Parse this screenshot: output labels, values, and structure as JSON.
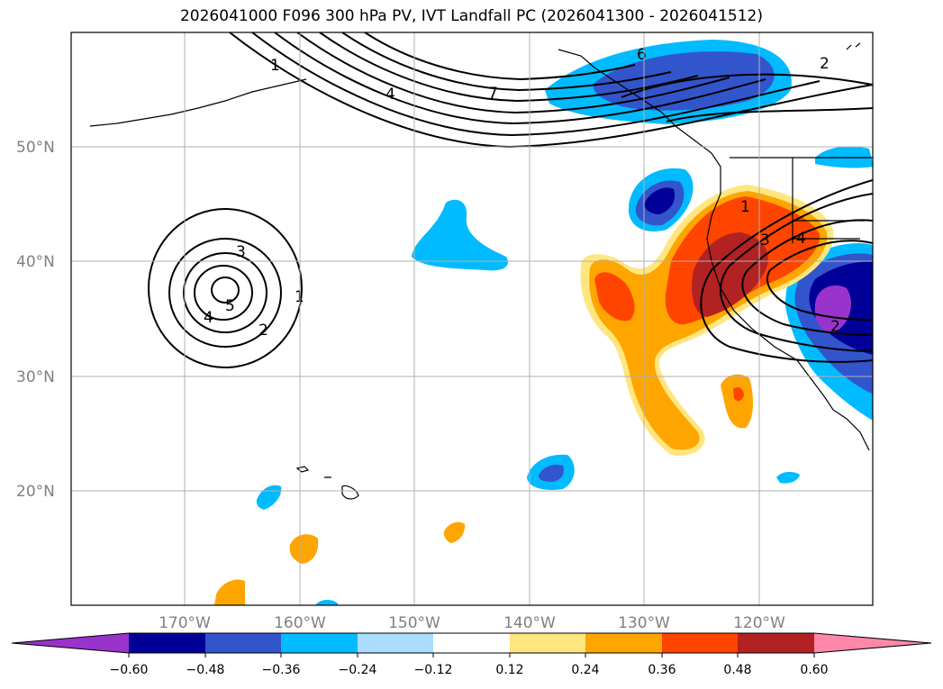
{
  "title": "2026041000 F096 300 hPa PV, IVT Landfall PC (2026041300 - 2026041512)",
  "map": {
    "lat_labels": [
      "50°N",
      "40°N",
      "30°N",
      "20°N"
    ],
    "lon_labels": [
      "170°W",
      "160°W",
      "150°W",
      "140°W",
      "130°W",
      "120°W"
    ],
    "contour_labels": [
      "1",
      "4",
      "7",
      "6",
      "2",
      "3",
      "5",
      "4",
      "2",
      "1",
      "1",
      "3",
      "4",
      "2"
    ]
  },
  "colorbar": {
    "ticks": [
      "−0.60",
      "−0.48",
      "−0.36",
      "−0.24",
      "−0.12",
      "0.12",
      "0.24",
      "0.36",
      "0.48",
      "0.60"
    ],
    "colors": [
      "#9933cc",
      "#000099",
      "#3355cc",
      "#00bbff",
      "#aaddff",
      "#ffffff",
      "#ffe680",
      "#ffa500",
      "#ff4400",
      "#b22222",
      "#ff88aa"
    ]
  }
}
